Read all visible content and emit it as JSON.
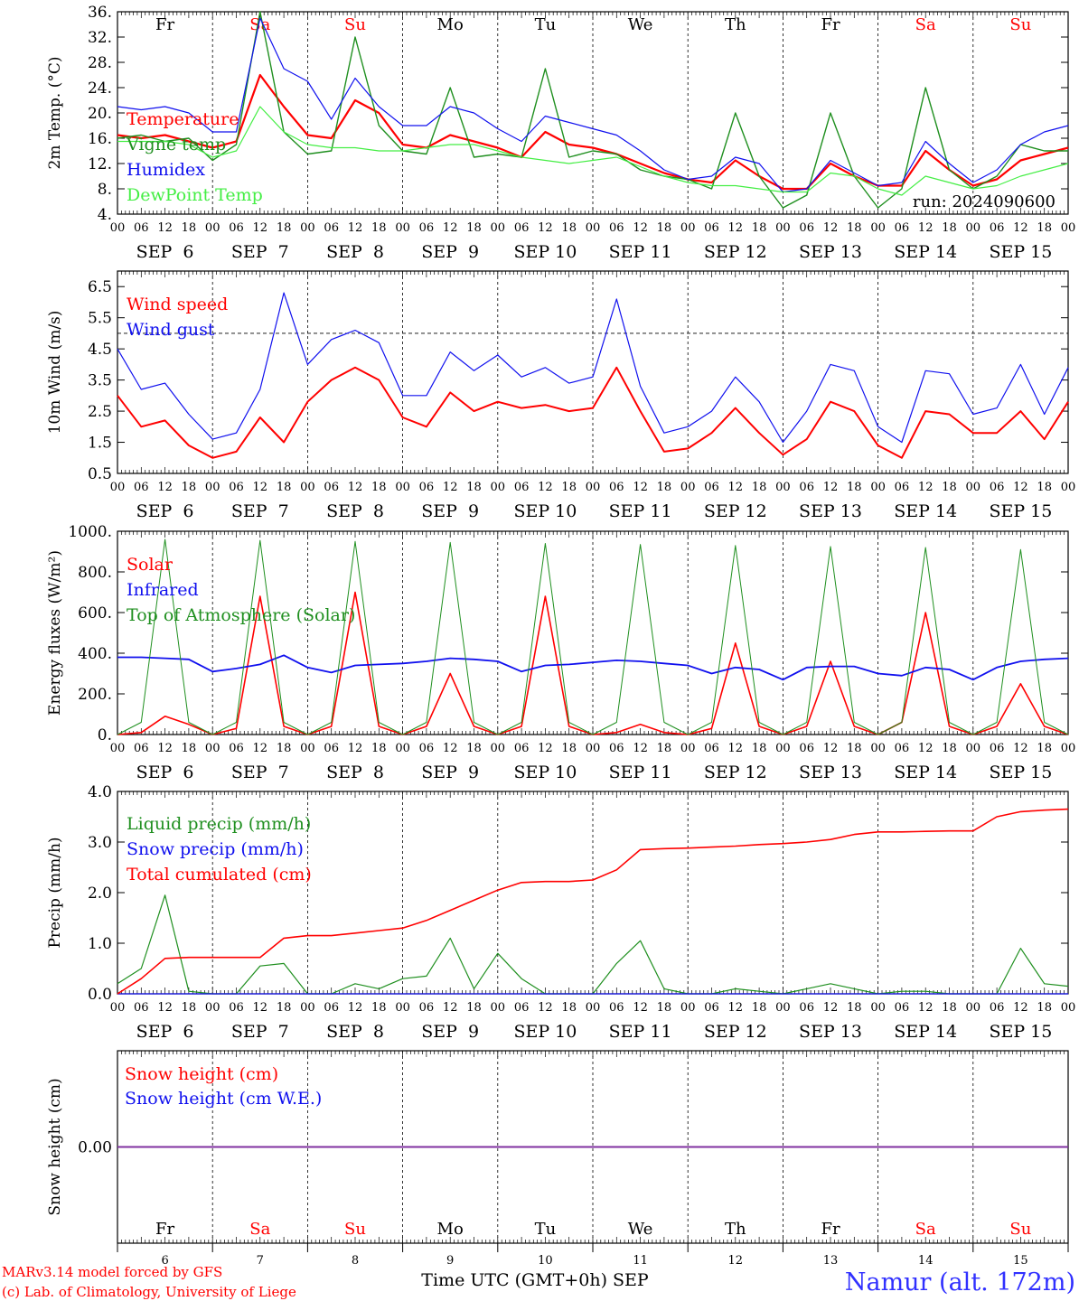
{
  "days": [
    "Fr",
    "Sa",
    "Su",
    "Mo",
    "Tu",
    "We",
    "Th",
    "Fr",
    "Sa",
    "Su"
  ],
  "weekend_days": [
    "Sa",
    "Su"
  ],
  "dates": [
    "SEP  6",
    "SEP  7",
    "SEP  8",
    "SEP  9",
    "SEP 10",
    "SEP 11",
    "SEP 12",
    "SEP 13",
    "SEP 14",
    "SEP 15"
  ],
  "date_numbers": [
    "6",
    "7",
    "8",
    "9",
    "10",
    "11",
    "12",
    "13",
    "14",
    "15"
  ],
  "hour_labels": [
    "00",
    "06",
    "12",
    "18"
  ],
  "hour_final": "00",
  "footer": {
    "model": "MARv3.14 model forced by GFS",
    "credit": "(c) Lab. of Climatology, University of Liege",
    "axis_title": "Time UTC (GMT+0h) SEP",
    "station": "Namur (alt. 172m)"
  },
  "colors": {
    "red": "#ff0000",
    "darkgreen": "#1f8f1f",
    "blue": "#1010ee",
    "lightgreen": "#44ee44",
    "purple": "#8030a0",
    "station": "#3030ff",
    "weekend": "#ff0000"
  },
  "chart_data": [
    {
      "type": "line",
      "ylabel": "2m Temp. (°C)",
      "ylim": [
        4,
        36
      ],
      "yticks": [
        "36.",
        "32.",
        "28.",
        "24.",
        "20.",
        "16.",
        "12.",
        "8.",
        "4."
      ],
      "annotation": "run: 2024090600",
      "x": [
        "SEP 6 00",
        "06",
        "12",
        "18",
        "SEP 7 00",
        "06",
        "12",
        "18",
        "SEP 8 00",
        "06",
        "12",
        "18",
        "SEP 9 00",
        "06",
        "12",
        "18",
        "SEP 10 00",
        "06",
        "12",
        "18",
        "SEP 11 00",
        "06",
        "12",
        "18",
        "SEP 12 00",
        "06",
        "12",
        "18",
        "SEP 13 00",
        "06",
        "12",
        "18",
        "SEP 14 00",
        "06",
        "12",
        "18",
        "SEP 15 00",
        "06",
        "12",
        "18",
        "SEP 16 00"
      ],
      "series": [
        {
          "name": "Temperature",
          "values": [
            16.5,
            16,
            16.5,
            15.5,
            14.5,
            15.5,
            26,
            21,
            16.5,
            16,
            22,
            20,
            15,
            14.5,
            16.5,
            15.5,
            14.5,
            13,
            17,
            15,
            14.5,
            13.5,
            12,
            10.5,
            9.5,
            9,
            12.5,
            10,
            8,
            8,
            12,
            10,
            8.5,
            8.5,
            14,
            11,
            8.5,
            9.5,
            12.5,
            13.5,
            14.5
          ]
        },
        {
          "name": "Vigne temp",
          "values": [
            16,
            16.5,
            15.5,
            16,
            12.5,
            15,
            36,
            17,
            13.5,
            14,
            32,
            18,
            14,
            13.5,
            24,
            13,
            13.5,
            13,
            27,
            13,
            14,
            13.5,
            11,
            10,
            9.5,
            8,
            20,
            10,
            5,
            7,
            20,
            10,
            5,
            8,
            24,
            11,
            8,
            10,
            15,
            14,
            14
          ]
        },
        {
          "name": "Humidex",
          "values": [
            21,
            20.5,
            21,
            20,
            17,
            17,
            35,
            27,
            25,
            19,
            25.5,
            21,
            18,
            18,
            21,
            20,
            17.5,
            15.5,
            19.5,
            18.5,
            17.5,
            16.5,
            14,
            11,
            9.5,
            10,
            13,
            12,
            7.5,
            8,
            12.5,
            10.5,
            8.5,
            9,
            15.5,
            12,
            9,
            11,
            15,
            17,
            18
          ]
        },
        {
          "name": "DewPoint Temp",
          "values": [
            15.5,
            15.5,
            15.5,
            15,
            13,
            14,
            21,
            17,
            15,
            14.5,
            14.5,
            14,
            14,
            14.5,
            15,
            15,
            14,
            13,
            12.5,
            12,
            12.5,
            13,
            11.5,
            10,
            9,
            8.5,
            8.5,
            8,
            7.5,
            7.5,
            10.5,
            10,
            8,
            7,
            10,
            9,
            8,
            8.5,
            10,
            11,
            12
          ]
        }
      ]
    },
    {
      "type": "line",
      "ylabel": "10m Wind (m/s)",
      "ylim": [
        0.5,
        7
      ],
      "yticks": [
        "6.5",
        "5.5",
        "4.5",
        "3.5",
        "2.5",
        "1.5",
        "0.5"
      ],
      "reference_line": 5,
      "x": [
        "SEP 6 00",
        "06",
        "12",
        "18",
        "SEP 7 00",
        "06",
        "12",
        "18",
        "SEP 8 00",
        "06",
        "12",
        "18",
        "SEP 9 00",
        "06",
        "12",
        "18",
        "SEP 10 00",
        "06",
        "12",
        "18",
        "SEP 11 00",
        "06",
        "12",
        "18",
        "SEP 12 00",
        "06",
        "12",
        "18",
        "SEP 13 00",
        "06",
        "12",
        "18",
        "SEP 14 00",
        "06",
        "12",
        "18",
        "SEP 15 00",
        "06",
        "12",
        "18",
        "SEP 16 00"
      ],
      "series": [
        {
          "name": "Wind speed",
          "values": [
            3,
            2,
            2.2,
            1.4,
            1,
            1.2,
            2.3,
            1.5,
            2.8,
            3.5,
            3.9,
            3.5,
            2.3,
            2,
            3.1,
            2.5,
            2.8,
            2.6,
            2.7,
            2.5,
            2.6,
            3.9,
            2.5,
            1.2,
            1.3,
            1.8,
            2.6,
            1.8,
            1.1,
            1.6,
            2.8,
            2.5,
            1.4,
            1,
            2.5,
            2.4,
            1.8,
            1.8,
            2.5,
            1.6,
            2.8
          ]
        },
        {
          "name": "Wind gust",
          "values": [
            4.5,
            3.2,
            3.4,
            2.4,
            1.6,
            1.8,
            3.2,
            6.3,
            4,
            4.8,
            5.1,
            4.7,
            3,
            3,
            4.4,
            3.8,
            4.3,
            3.6,
            3.9,
            3.4,
            3.6,
            6.1,
            3.3,
            1.8,
            2,
            2.5,
            3.6,
            2.8,
            1.5,
            2.5,
            4,
            3.8,
            2,
            1.5,
            3.8,
            3.7,
            2.4,
            2.6,
            4,
            2.4,
            3.9
          ]
        }
      ]
    },
    {
      "type": "line",
      "ylabel": "Energy fluxes (W/m²)",
      "ylim": [
        0,
        1000
      ],
      "yticks": [
        "1000.",
        "800.",
        "600.",
        "400.",
        "200.",
        "0."
      ],
      "x": [
        "SEP 6 00",
        "06",
        "12",
        "18",
        "SEP 7 00",
        "06",
        "12",
        "18",
        "SEP 8 00",
        "06",
        "12",
        "18",
        "SEP 9 00",
        "06",
        "12",
        "18",
        "SEP 10 00",
        "06",
        "12",
        "18",
        "SEP 11 00",
        "06",
        "12",
        "18",
        "SEP 12 00",
        "06",
        "12",
        "18",
        "SEP 13 00",
        "06",
        "12",
        "18",
        "SEP 14 00",
        "06",
        "12",
        "18",
        "SEP 15 00",
        "06",
        "12",
        "18",
        "SEP 16 00"
      ],
      "series": [
        {
          "name": "Solar",
          "values": [
            0,
            10,
            90,
            50,
            0,
            30,
            680,
            40,
            0,
            40,
            700,
            40,
            0,
            40,
            300,
            40,
            0,
            40,
            680,
            40,
            0,
            10,
            50,
            10,
            0,
            30,
            450,
            40,
            0,
            40,
            360,
            40,
            0,
            60,
            600,
            40,
            0,
            40,
            250,
            40,
            0
          ]
        },
        {
          "name": "Infrared",
          "values": [
            380,
            380,
            375,
            370,
            310,
            325,
            345,
            390,
            330,
            305,
            340,
            345,
            350,
            360,
            375,
            370,
            360,
            310,
            340,
            345,
            355,
            365,
            360,
            350,
            340,
            300,
            330,
            320,
            270,
            330,
            335,
            335,
            300,
            290,
            330,
            320,
            270,
            330,
            360,
            370,
            375
          ]
        },
        {
          "name": "Top of Atmosphere (Solar)",
          "values": [
            0,
            60,
            960,
            60,
            0,
            60,
            955,
            60,
            0,
            60,
            950,
            60,
            0,
            60,
            945,
            60,
            0,
            60,
            940,
            60,
            0,
            60,
            935,
            60,
            0,
            60,
            930,
            60,
            0,
            60,
            925,
            60,
            0,
            60,
            920,
            60,
            0,
            60,
            910,
            60,
            0
          ]
        }
      ]
    },
    {
      "type": "line",
      "ylabel": "Precip (mm/h)",
      "ylim": [
        0,
        4
      ],
      "yticks": [
        "4.0",
        "3.0",
        "2.0",
        "1.0",
        "0.0"
      ],
      "x": [
        "SEP 6 00",
        "06",
        "12",
        "18",
        "SEP 7 00",
        "06",
        "12",
        "18",
        "SEP 8 00",
        "06",
        "12",
        "18",
        "SEP 9 00",
        "06",
        "12",
        "18",
        "SEP 10 00",
        "06",
        "12",
        "18",
        "SEP 11 00",
        "06",
        "12",
        "18",
        "SEP 12 00",
        "06",
        "12",
        "18",
        "SEP 13 00",
        "06",
        "12",
        "18",
        "SEP 14 00",
        "06",
        "12",
        "18",
        "SEP 15 00",
        "06",
        "12",
        "18",
        "SEP 16 00"
      ],
      "series": [
        {
          "name": "Liquid precip (mm/h)",
          "values": [
            0.2,
            0.5,
            1.95,
            0.05,
            0,
            0,
            0.55,
            0.6,
            0,
            0,
            0.2,
            0.1,
            0.3,
            0.35,
            1.1,
            0.1,
            0.8,
            0.3,
            0,
            0,
            0,
            0.6,
            1.05,
            0.1,
            0,
            0,
            0.1,
            0.05,
            0,
            0.1,
            0.2,
            0.1,
            0,
            0.05,
            0.05,
            0,
            0,
            0,
            0.9,
            0.2,
            0.15
          ]
        },
        {
          "name": "Snow precip (mm/h)",
          "values": [
            0,
            0,
            0,
            0,
            0,
            0,
            0,
            0,
            0,
            0,
            0,
            0,
            0,
            0,
            0,
            0,
            0,
            0,
            0,
            0,
            0,
            0,
            0,
            0,
            0,
            0,
            0,
            0,
            0,
            0,
            0,
            0,
            0,
            0,
            0,
            0,
            0,
            0,
            0,
            0,
            0
          ]
        },
        {
          "name": "Total cumulated (cm)",
          "values": [
            0,
            0.3,
            0.7,
            0.72,
            0.72,
            0.72,
            0.72,
            1.1,
            1.15,
            1.15,
            1.2,
            1.25,
            1.3,
            1.45,
            1.65,
            1.85,
            2.05,
            2.2,
            2.22,
            2.22,
            2.25,
            2.45,
            2.85,
            2.87,
            2.88,
            2.9,
            2.92,
            2.95,
            2.97,
            3.0,
            3.05,
            3.15,
            3.2,
            3.2,
            3.21,
            3.22,
            3.22,
            3.5,
            3.6,
            3.63,
            3.65
          ]
        }
      ]
    },
    {
      "type": "line",
      "ylabel": "Snow height (cm)",
      "ylim": [
        -1,
        1
      ],
      "yticks": [
        "0.00"
      ],
      "x": [
        "SEP 6 00",
        "SEP 16 00"
      ],
      "series": [
        {
          "name": "Snow height (cm)",
          "values": [
            0,
            0
          ]
        },
        {
          "name": "Snow height (cm W.E.)",
          "values": [
            0,
            0
          ]
        }
      ]
    }
  ]
}
